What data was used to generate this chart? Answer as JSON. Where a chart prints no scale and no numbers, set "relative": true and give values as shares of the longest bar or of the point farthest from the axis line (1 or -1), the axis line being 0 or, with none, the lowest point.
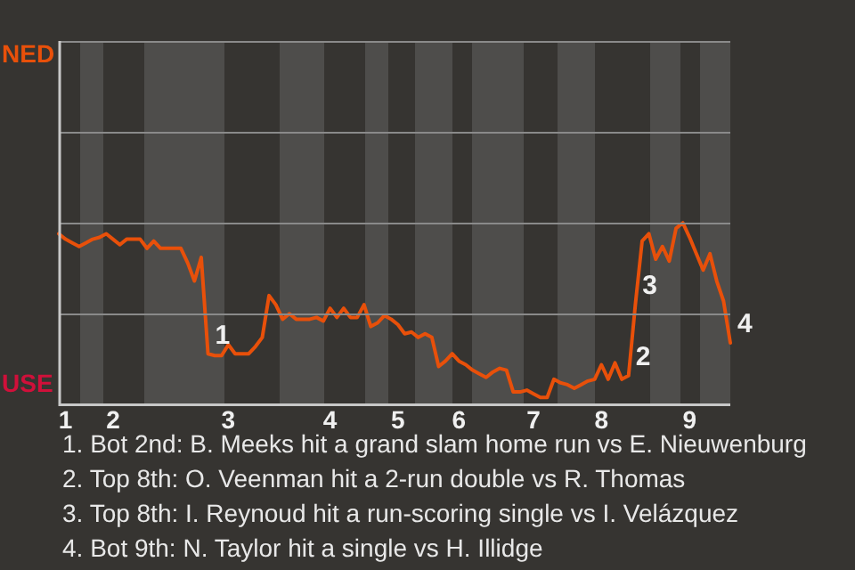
{
  "chart_data": {
    "type": "line",
    "categories": [
      null,
      "1",
      null,
      null,
      null,
      null,
      null,
      null,
      "2",
      null,
      null,
      null,
      null,
      null,
      null,
      null,
      null,
      null,
      null,
      null,
      null,
      null,
      null,
      null,
      null,
      "3",
      null,
      null,
      null,
      null,
      null,
      null,
      null,
      null,
      null,
      null,
      null,
      null,
      null,
      null,
      "4",
      null,
      null,
      null,
      null,
      null,
      null,
      null,
      null,
      null,
      "5",
      null,
      null,
      null,
      null,
      null,
      null,
      null,
      null,
      "6",
      null,
      null,
      null,
      null,
      null,
      null,
      null,
      null,
      null,
      null,
      "7",
      null,
      null,
      null,
      null,
      null,
      null,
      null,
      null,
      null,
      "8",
      null,
      null,
      null,
      null,
      null,
      null,
      null,
      null,
      null,
      null,
      null,
      null,
      "9",
      null,
      null,
      null,
      null,
      null,
      null
    ],
    "relative": true,
    "series": [
      {
        "color": "#e8500a",
        "values": [
          0.94,
          0.91,
          0.89,
          0.87,
          0.89,
          0.91,
          0.92,
          0.94,
          0.91,
          0.88,
          0.91,
          0.91,
          0.91,
          0.86,
          0.9,
          0.86,
          0.86,
          0.86,
          0.86,
          0.78,
          0.68,
          0.81,
          0.28,
          0.27,
          0.27,
          0.33,
          0.28,
          0.28,
          0.28,
          0.32,
          0.37,
          0.6,
          0.55,
          0.47,
          0.5,
          0.47,
          0.47,
          0.47,
          0.48,
          0.46,
          0.53,
          0.48,
          0.53,
          0.48,
          0.48,
          0.55,
          0.43,
          0.45,
          0.49,
          0.47,
          0.44,
          0.39,
          0.4,
          0.37,
          0.39,
          0.37,
          0.21,
          0.24,
          0.28,
          0.24,
          0.22,
          0.19,
          0.17,
          0.15,
          0.18,
          0.2,
          0.19,
          0.07,
          0.07,
          0.08,
          0.06,
          0.04,
          0.04,
          0.14,
          0.12,
          0.11,
          0.09,
          0.11,
          0.13,
          0.14,
          0.22,
          0.14,
          0.23,
          0.14,
          0.16,
          0.55,
          0.9,
          0.94,
          0.8,
          0.87,
          0.79,
          0.97,
          1,
          0.92,
          0.83,
          0.74,
          0.83,
          0.68,
          0.57,
          0.34
        ]
      }
    ],
    "ref_lines": [
      {
        "axis": "y",
        "value": 1,
        "color": "#8a8a8a"
      },
      {
        "axis": "y",
        "value": 0.5,
        "color": "#8a8a8a"
      }
    ],
    "marker": "none",
    "legend": false,
    "annotations": [
      "1",
      "2",
      "3",
      "4",
      "NED",
      "USE",
      "1. Bot 2nd: B. Meeks hit a grand slam home run vs E. Nieuwenburg",
      "2. Top 8th: O. Veenman hit a 2-run double vs R. Thomas",
      "3. Top 8th: I. Reynoud hit a run-scoring single vs I. Velázquez",
      "4. Bot 9th: N. Taylor hit a single vs H. Illidge"
    ]
  }
}
